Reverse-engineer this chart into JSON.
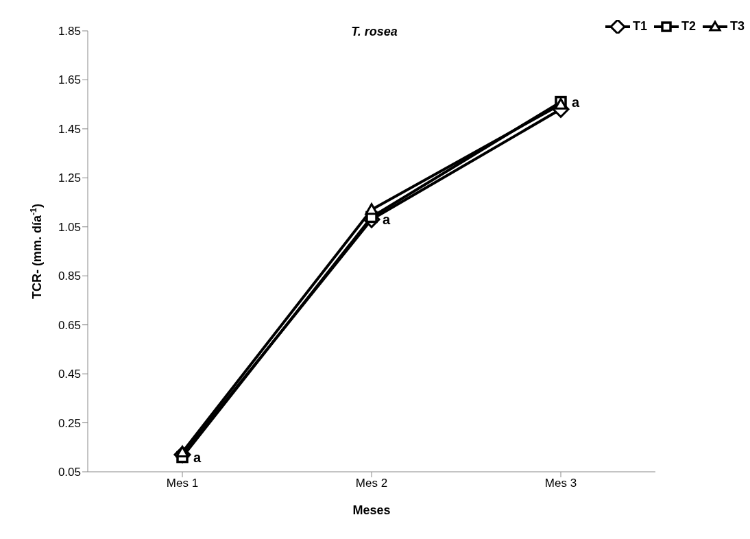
{
  "chart_data": {
    "type": "line",
    "title": "T. rosea",
    "xlabel": "Meses",
    "ylabel": "TCR- (mm. día$^{-1}$)",
    "categories": [
      "Mes 1",
      "Mes 2",
      "Mes 3"
    ],
    "series": [
      {
        "name": "T1",
        "color": "#000000",
        "marker": "diamond",
        "values": [
          0.12,
          1.08,
          1.53
        ]
      },
      {
        "name": "T2",
        "color": "#000000",
        "marker": "square",
        "values": [
          0.11,
          1.09,
          1.56
        ]
      },
      {
        "name": "T3",
        "color": "#000000",
        "marker": "triangle",
        "values": [
          0.13,
          1.12,
          1.55
        ]
      }
    ],
    "ylim": [
      0.05,
      1.85
    ],
    "yticks": [
      0.05,
      0.25,
      0.45,
      0.65,
      0.85,
      1.05,
      1.25,
      1.45,
      1.65,
      1.85
    ],
    "grid": false,
    "legend": "top right",
    "annotations": [
      {
        "text": "a",
        "x": "Mes 1",
        "y": 0.11
      },
      {
        "text": "a",
        "x": "Mes 2",
        "y": 1.08
      },
      {
        "text": "a",
        "x": "Mes 3",
        "y": 1.56
      }
    ]
  }
}
